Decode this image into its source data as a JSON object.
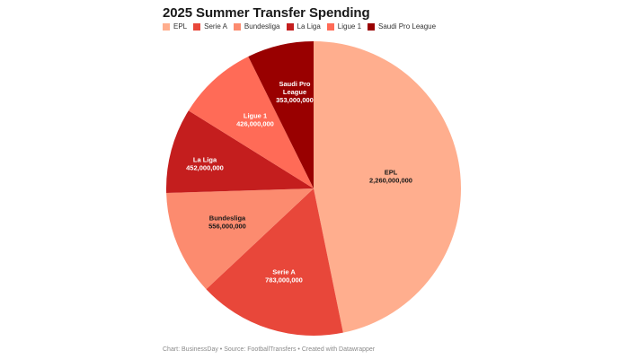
{
  "title": "2025 Summer Transfer Spending",
  "legend": [
    {
      "label": "EPL",
      "color": "#ffae8e"
    },
    {
      "label": "Serie A",
      "color": "#e8473a"
    },
    {
      "label": "Bundesliga",
      "color": "#fc8b6f"
    },
    {
      "label": "La Liga",
      "color": "#c41e1e"
    },
    {
      "label": "Ligue 1",
      "color": "#ff6b57"
    },
    {
      "label": "Saudi Pro League",
      "color": "#990000"
    }
  ],
  "footer": "Chart: BusinessDay • Source: FootballTransfers • Created with Datawrapper",
  "chart_data": {
    "type": "pie",
    "title": "2025 Summer Transfer Spending",
    "categories": [
      "EPL",
      "Serie A",
      "Bundesliga",
      "La Liga",
      "Ligue 1",
      "Saudi Pro League"
    ],
    "values": [
      2260000000,
      783000000,
      556000000,
      452000000,
      426000000,
      353000000
    ],
    "value_labels": [
      "2,260,000,000",
      "783,000,000",
      "556,000,000",
      "452,000,000",
      "426,000,000",
      "353,000,000"
    ],
    "colors": [
      "#ffae8e",
      "#e8473a",
      "#fc8b6f",
      "#c41e1e",
      "#ff6b57",
      "#990000"
    ],
    "label_colors": [
      "#1a1a1a",
      "#ffffff",
      "#1a1a1a",
      "#ffffff",
      "#ffffff",
      "#ffffff"
    ],
    "legend_position": "top",
    "start_angle": "12 o'clock",
    "direction": "clockwise",
    "source": "FootballTransfers"
  }
}
